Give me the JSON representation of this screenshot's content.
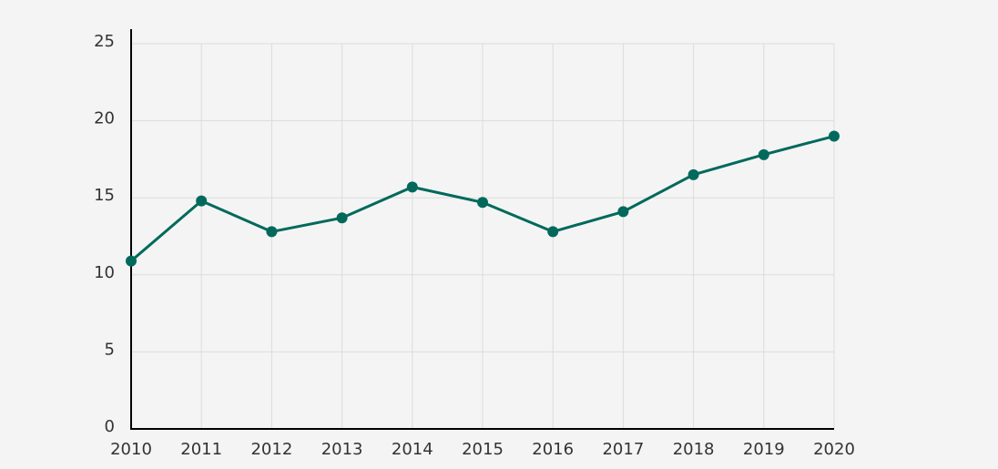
{
  "chart_data": {
    "type": "line",
    "x": [
      2010,
      2011,
      2012,
      2013,
      2014,
      2015,
      2016,
      2017,
      2018,
      2019,
      2020
    ],
    "series": [
      {
        "name": null,
        "color": "#00695c",
        "values": [
          10.9,
          14.8,
          12.8,
          13.7,
          15.7,
          14.7,
          12.8,
          14.1,
          16.5,
          17.8,
          19.0
        ]
      }
    ],
    "xlim": [
      2010,
      2020
    ],
    "xticks": [
      2010,
      2011,
      2012,
      2013,
      2014,
      2015,
      2016,
      2017,
      2018,
      2019,
      2020
    ],
    "ylim": [
      0,
      25
    ],
    "yticks": [
      0,
      5,
      10,
      15,
      20,
      25
    ],
    "grid": true
  }
}
